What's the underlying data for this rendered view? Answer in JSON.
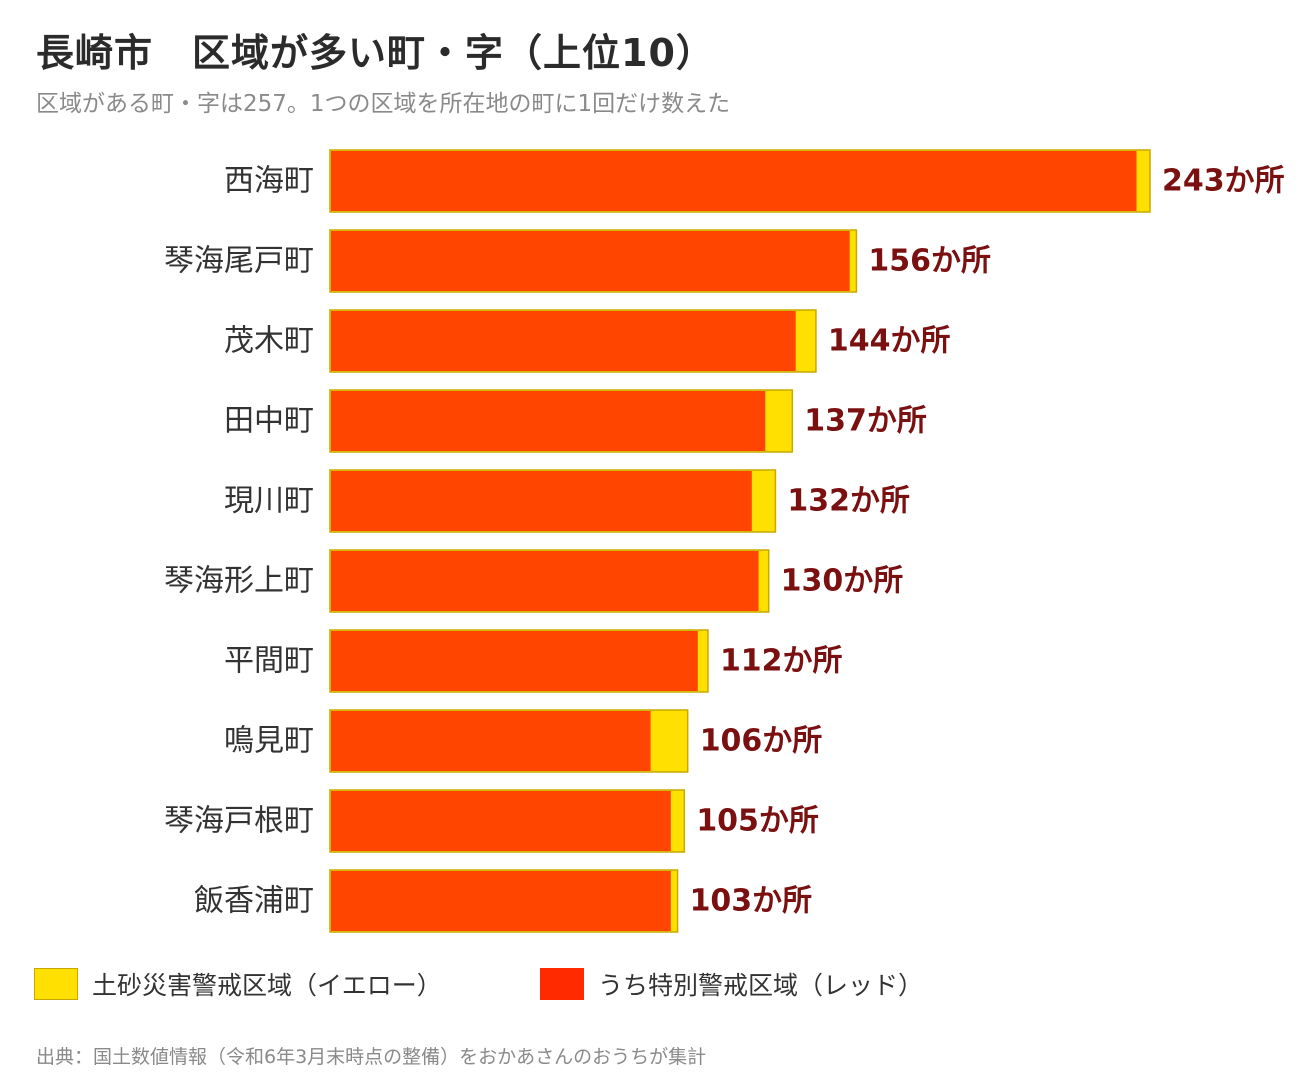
{
  "header": {
    "title": "長崎市　区域が多い町・字（上位10）",
    "subtitle": "区域がある町・字は257。1つの区域を所在地の町に1回だけ数えた"
  },
  "legend": {
    "yellow_label": "土砂災害警戒区域（イエロー）",
    "red_label": "うち特別警戒区域（レッド）"
  },
  "source": "出典：国土数値情報（令和6年3月末時点の整備）をおかあさんのおうちが集計",
  "colors": {
    "red": "#FF4500",
    "yellow": "#FFE000",
    "bar_border": "#C9A800",
    "value_label": "#7A1010",
    "category_label": "#333333"
  },
  "chart_data": {
    "type": "bar",
    "orientation": "horizontal",
    "stacked": true,
    "categories": [
      "西海町",
      "琴海尾戸町",
      "茂木町",
      "田中町",
      "現川町",
      "琴海形上町",
      "平間町",
      "鳴見町",
      "琴海戸根町",
      "飯香浦町"
    ],
    "series": [
      {
        "name": "うち特別警戒区域（レッド）",
        "color": "#FF4500",
        "values": [
          239,
          154,
          138,
          129,
          125,
          127,
          109,
          95,
          101,
          101
        ]
      },
      {
        "name": "土砂災害警戒区域（イエロー）",
        "color": "#FFE000",
        "values": [
          4,
          2,
          6,
          8,
          7,
          3,
          3,
          11,
          4,
          2
        ]
      }
    ],
    "totals": [
      243,
      156,
      144,
      137,
      132,
      130,
      112,
      106,
      105,
      103
    ],
    "value_labels": [
      "243か所",
      "156か所",
      "144か所",
      "137か所",
      "132か所",
      "130か所",
      "112か所",
      "106か所",
      "105か所",
      "103か所"
    ],
    "xlim": [
      0,
      243
    ],
    "grid": false,
    "legend_position": "bottom"
  }
}
